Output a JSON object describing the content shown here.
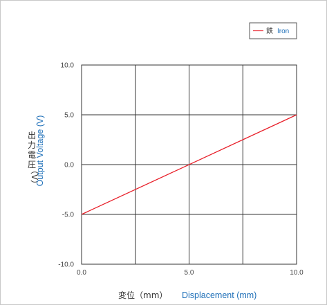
{
  "chart_data": {
    "type": "line",
    "x": [
      0.0,
      10.0
    ],
    "series": [
      {
        "name_jp": "鉄",
        "name_en": "Iron",
        "color": "#e8202a",
        "values": [
          -5.0,
          5.0
        ]
      }
    ],
    "xlim": [
      0,
      10
    ],
    "ylim": [
      -10,
      10
    ],
    "xticks": [
      0.0,
      2.5,
      5.0,
      7.5,
      10.0
    ],
    "yticks": [
      -10.0,
      -5.0,
      0.0,
      5.0,
      10.0
    ],
    "xtick_labels": [
      "0.0",
      "5.0",
      "10.0"
    ],
    "ytick_labels": [
      "10.0",
      "5.0",
      "0.0",
      "-5.0",
      "-10.0"
    ],
    "xlabel_jp": "変位（mm）",
    "xlabel_en": "Displacement (mm)",
    "ylabel_jp_chars": [
      "出",
      "力",
      "電",
      "圧",
      "（V）"
    ],
    "ylabel_en": "Output Voltage (V)",
    "grid": true,
    "legend_position": "top-right"
  }
}
